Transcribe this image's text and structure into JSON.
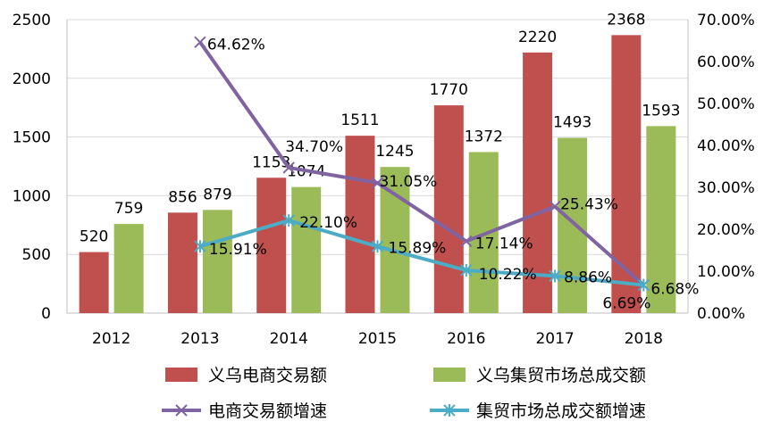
{
  "chart_data": {
    "type": "bar",
    "categories": [
      "2012",
      "2013",
      "2014",
      "2015",
      "2016",
      "2017",
      "2018"
    ],
    "series": [
      {
        "name": "义乌电商交易额",
        "kind": "bar",
        "axis": "left",
        "color": "#c0504d",
        "values": [
          520,
          856,
          1153,
          1511,
          1770,
          2220,
          2368
        ],
        "labels": [
          "520",
          "856",
          "1153",
          "1511",
          "1770",
          "2220",
          "2368"
        ]
      },
      {
        "name": "义乌集贸市场总成交额",
        "kind": "bar",
        "axis": "left",
        "color": "#9bbb59",
        "values": [
          759,
          879,
          1074,
          1245,
          1372,
          1493,
          1593
        ],
        "labels": [
          "759",
          "879",
          "1074",
          "1245",
          "1372",
          "1493",
          "1593"
        ]
      },
      {
        "name": "电商交易额增速",
        "kind": "line",
        "axis": "right",
        "color": "#8064a2",
        "marker": "x",
        "values": [
          null,
          64.62,
          34.7,
          31.05,
          17.14,
          25.43,
          6.68
        ],
        "labels": [
          "",
          "64.62%",
          "34.70%",
          "31.05%",
          "17.14%",
          "25.43%",
          "6.68%"
        ]
      },
      {
        "name": "集贸市场总成交额增速",
        "kind": "line",
        "axis": "right",
        "color": "#4bacc6",
        "marker": "asterisk",
        "values": [
          null,
          15.91,
          22.1,
          15.89,
          10.22,
          8.86,
          6.69
        ],
        "labels": [
          "",
          "15.91%",
          "22.10%",
          "15.89%",
          "10.22%",
          "8.86%",
          "6.69%"
        ]
      }
    ],
    "y_left": {
      "range": [
        0,
        2500
      ],
      "ticks": [
        0,
        500,
        1000,
        1500,
        2000,
        2500
      ],
      "tick_labels": [
        "0",
        "500",
        "1000",
        "1500",
        "2000",
        "2500"
      ]
    },
    "y_right": {
      "range": [
        0,
        70
      ],
      "ticks": [
        0,
        10,
        20,
        30,
        40,
        50,
        60,
        70
      ],
      "tick_labels": [
        "0.00%",
        "10.00%",
        "20.00%",
        "30.00%",
        "40.00%",
        "50.00%",
        "60.00%",
        "70.00%"
      ]
    },
    "grid": true,
    "legend": "bottom",
    "title": "",
    "xlabel": "",
    "ylabel": ""
  }
}
